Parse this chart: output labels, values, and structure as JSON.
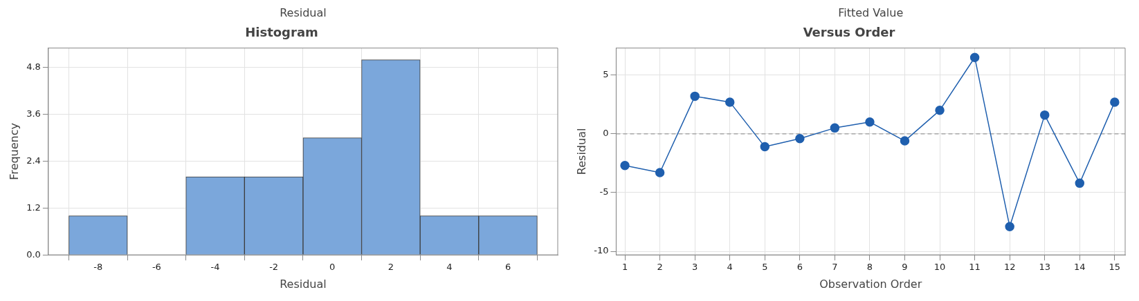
{
  "chart_data": [
    {
      "type": "histogram",
      "title": "Histogram",
      "xlabel": "Residual",
      "ylabel": "Frequency",
      "annotations": [
        "Residual"
      ],
      "bins": [
        -9,
        -7,
        -5,
        -3,
        -1,
        1,
        3,
        5,
        7
      ],
      "values": [
        1,
        0,
        2,
        2,
        3,
        5,
        1,
        1
      ],
      "color": "#7ba7db",
      "xlim": [
        -9.7,
        7.7
      ],
      "xticks": [
        -8,
        -6,
        -4,
        -2,
        0,
        2,
        4,
        6
      ],
      "ylim": [
        0,
        5.3
      ],
      "yticks": [
        {
          "value": 0,
          "label": "0.0"
        },
        1.2,
        2.4,
        3.6,
        4.8
      ],
      "grid": true,
      "legend": false
    },
    {
      "type": "line",
      "title": "Versus Order",
      "xlabel": "Observation Order",
      "ylabel": "Residual",
      "annotations": [
        "Fitted Value"
      ],
      "x": [
        1,
        2,
        3,
        4,
        5,
        6,
        7,
        8,
        9,
        10,
        11,
        12,
        13,
        14,
        15
      ],
      "series": [
        {
          "color": "#1f5fae",
          "values": [
            -2.7,
            -3.3,
            3.2,
            2.7,
            -1.1,
            -0.4,
            0.5,
            1.0,
            -0.6,
            2.0,
            6.5,
            -7.9,
            1.6,
            -4.2,
            2.7
          ]
        }
      ],
      "xlim": [
        0.75,
        15.3
      ],
      "xticks": [
        1,
        2,
        3,
        4,
        5,
        6,
        7,
        8,
        9,
        10,
        11,
        12,
        13,
        14,
        15
      ],
      "ylim": [
        -10.3,
        7.3
      ],
      "yticks": [
        -10,
        -5,
        0,
        5
      ],
      "ref_lines": [
        {
          "axis": "y",
          "value": 0,
          "color": "#9a9a9a",
          "line_style": "dashed"
        }
      ],
      "marker": "circle",
      "line_style": "solid",
      "grid": true,
      "legend": false
    }
  ]
}
